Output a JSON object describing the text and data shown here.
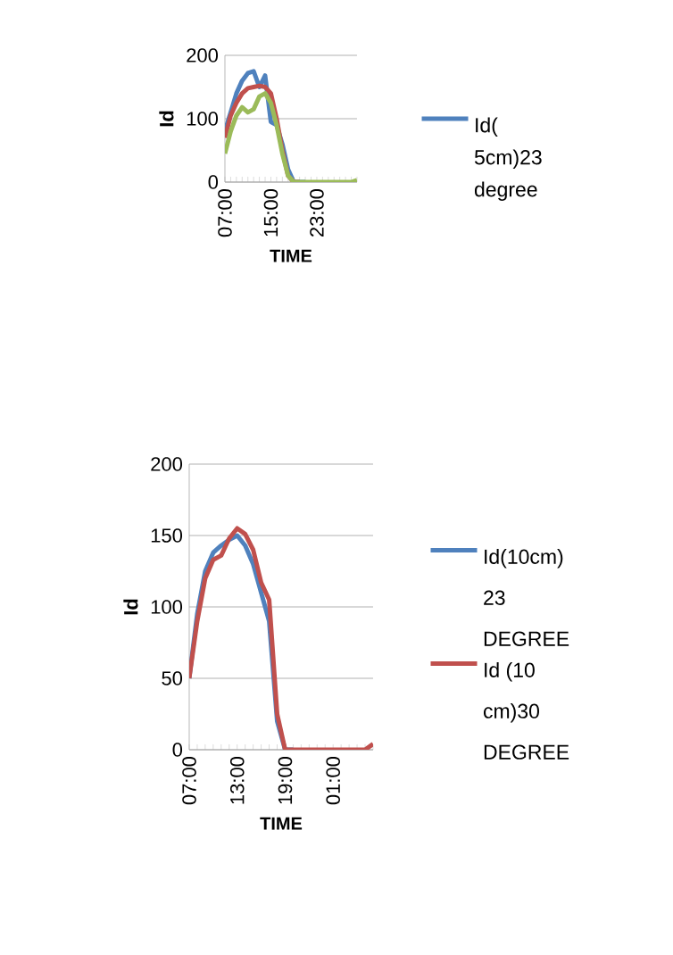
{
  "chart_data": [
    {
      "type": "line",
      "xlabel": "TIME",
      "ylabel": "Id",
      "categories": [
        "07:00",
        null,
        null,
        null,
        null,
        null,
        null,
        null,
        "15:00",
        null,
        null,
        null,
        null,
        null,
        null,
        null,
        "23:00",
        null,
        null,
        null,
        null,
        null,
        null,
        null
      ],
      "series": [
        {
          "name": "Id( 5cm)23 degree",
          "color": "#4f81bd",
          "values": [
            80,
            110,
            140,
            160,
            172,
            175,
            150,
            168,
            95,
            90,
            60,
            20,
            0,
            0,
            0,
            null,
            null,
            null,
            null,
            null,
            null,
            null,
            null,
            null
          ]
        },
        {
          "color": "#c0504d",
          "values": [
            70,
            105,
            125,
            140,
            148,
            150,
            152,
            150,
            140,
            100,
            50,
            10,
            0,
            0,
            null,
            null,
            null,
            null,
            null,
            null,
            null,
            null,
            null,
            null
          ]
        },
        {
          "color": "#9bbb59",
          "values": [
            45,
            80,
            105,
            118,
            110,
            115,
            135,
            140,
            125,
            90,
            45,
            10,
            0,
            0,
            0,
            0,
            0,
            0,
            0,
            0,
            0,
            0,
            0,
            3
          ]
        }
      ],
      "ylim": [
        0,
        200
      ],
      "yticks": [
        0,
        100,
        200
      ],
      "grid": "y",
      "legend": "right"
    },
    {
      "type": "line",
      "xlabel": "TIME",
      "ylabel": "Id",
      "categories": [
        "07:00",
        null,
        null,
        null,
        null,
        null,
        "13:00",
        null,
        null,
        null,
        null,
        null,
        "19:00",
        null,
        null,
        null,
        null,
        null,
        "01:00",
        null,
        null,
        null,
        null,
        null
      ],
      "series": [
        {
          "name": "Id(10cm) 23 DEGREE",
          "color": "#4f81bd",
          "values": [
            50,
            95,
            125,
            138,
            143,
            147,
            150,
            143,
            130,
            110,
            90,
            20,
            0,
            0,
            null,
            null,
            null,
            null,
            null,
            null,
            null,
            null,
            null,
            null
          ]
        },
        {
          "name": "Id (10 cm)30 DEGREE",
          "color": "#c0504d",
          "values": [
            50,
            90,
            120,
            133,
            136,
            148,
            155,
            151,
            140,
            117,
            105,
            25,
            0,
            0,
            0,
            0,
            0,
            0,
            0,
            0,
            0,
            0,
            0,
            4
          ]
        }
      ],
      "ylim": [
        0,
        200
      ],
      "yticks": [
        0,
        50,
        100,
        150,
        200
      ],
      "grid": "y",
      "legend": "right"
    }
  ]
}
